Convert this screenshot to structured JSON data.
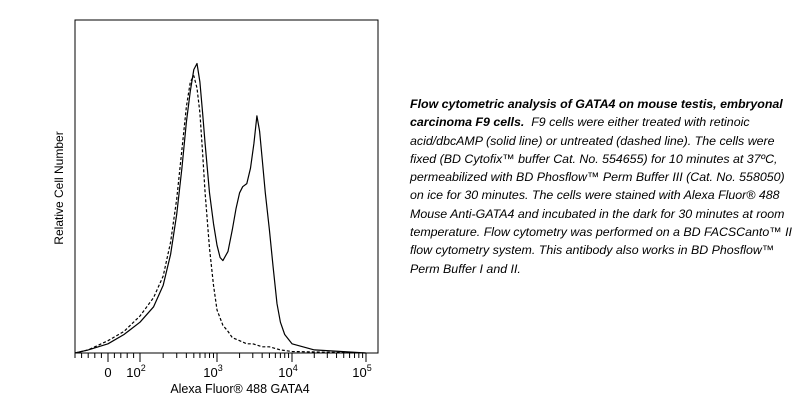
{
  "caption": {
    "title": "Flow cytometric analysis of GATA4 on mouse testis, embryonal carcinoma F9 cells.",
    "body": "F9 cells were either treated with retinoic acid/dbcAMP (solid line) or untreated (dashed line). The cells were fixed (BD Cytofix™ buffer Cat. No. 554655) for 10 minutes at 37ºC, permeabilized with BD Phosflow™ Perm Buffer III (Cat. No. 558050) on ice for 30 minutes. The cells were stained with Alexa Fluor® 488 Mouse Anti-GATA4 and incubated in the dark for 30 minutes at room temperature. Flow cytometry was performed on a BD FACSCanto™ II flow cytometry system. This antibody also works in BD Phosflow™ Perm Buffer I and II."
  },
  "chart_data": {
    "type": "line",
    "title": "",
    "xlabel": "Alexa Fluor® 488 GATA4",
    "ylabel": "Relative Cell Number",
    "x_scale": "biexponential (linear near 0, log above ~10^2)",
    "xlim": [
      -100,
      100000
    ],
    "ylim": [
      0,
      100
    ],
    "x_ticks": [
      {
        "value": 0,
        "label": "0"
      },
      {
        "value": 100,
        "label": "10",
        "sup": "2"
      },
      {
        "value": 1000,
        "label": "10",
        "sup": "3"
      },
      {
        "value": 10000,
        "label": "10",
        "sup": "4"
      },
      {
        "value": 100000,
        "label": "10",
        "sup": "5"
      }
    ],
    "grid": false,
    "legend": "none",
    "series": [
      {
        "style": "solid",
        "x": [
          -100,
          -60,
          0,
          50,
          100,
          150,
          200,
          250,
          300,
          350,
          400,
          450,
          500,
          550,
          600,
          650,
          700,
          800,
          900,
          1000,
          1100,
          1200,
          1400,
          1600,
          1800,
          2000,
          2200,
          2500,
          2800,
          3100,
          3400,
          3700,
          4000,
          4400,
          5000,
          5600,
          6300,
          7000,
          8000,
          10000,
          20000,
          100000
        ],
        "y": [
          0,
          1,
          3,
          6,
          10,
          15,
          22,
          32,
          45,
          60,
          75,
          85,
          92,
          94,
          88,
          78,
          68,
          52,
          42,
          35,
          31,
          30,
          33,
          40,
          47,
          52,
          54,
          55,
          60,
          68,
          77,
          72,
          63,
          52,
          40,
          28,
          16,
          10,
          6,
          3,
          1,
          0
        ]
      },
      {
        "style": "dashed",
        "x": [
          -100,
          -60,
          0,
          50,
          100,
          150,
          200,
          250,
          300,
          350,
          400,
          450,
          500,
          550,
          600,
          650,
          700,
          800,
          900,
          1000,
          1200,
          1400,
          1600,
          2000,
          2500,
          3000,
          4000,
          5000,
          7000,
          10000,
          100000
        ],
        "y": [
          0,
          1,
          4,
          7,
          12,
          18,
          25,
          36,
          50,
          66,
          80,
          88,
          90,
          86,
          78,
          65,
          52,
          34,
          22,
          14,
          9,
          7,
          5,
          4,
          3,
          3,
          2,
          2,
          1,
          0.5,
          0
        ]
      }
    ]
  }
}
